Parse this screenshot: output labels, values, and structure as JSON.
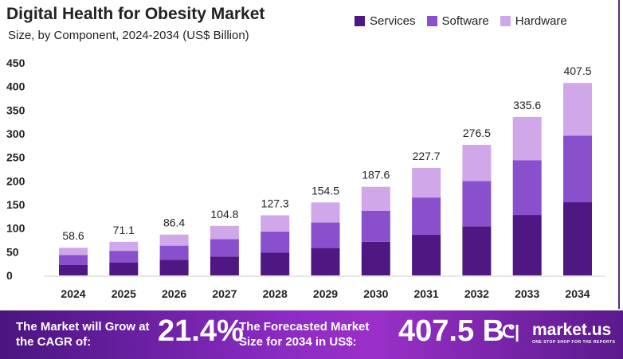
{
  "chart_data": {
    "type": "bar",
    "stacked": true,
    "title": "Digital Health for Obesity Market",
    "subtitle": "Size, by Component, 2024-2034 (US$ Billion)",
    "categories": [
      "2024",
      "2025",
      "2026",
      "2027",
      "2028",
      "2029",
      "2030",
      "2031",
      "2032",
      "2033",
      "2034"
    ],
    "totals": [
      "58.6",
      "71.1",
      "86.4",
      "104.8",
      "127.3",
      "154.5",
      "187.6",
      "227.7",
      "276.5",
      "335.6",
      "407.5"
    ],
    "series": [
      {
        "name": "Services",
        "color": "#4e1782",
        "values": [
          22,
          27,
          33,
          40,
          48,
          58,
          71,
          86,
          104,
          128,
          155
        ]
      },
      {
        "name": "Software",
        "color": "#8a4fcc",
        "values": [
          21,
          25,
          30,
          37,
          45,
          54,
          66,
          79,
          96,
          116,
          141
        ]
      },
      {
        "name": "Hardware",
        "color": "#d0a8ea",
        "values": [
          15.6,
          19.1,
          23.4,
          27.8,
          34.3,
          42.5,
          50.6,
          62.7,
          76.5,
          91.6,
          111.5
        ]
      }
    ],
    "ylim": [
      0,
      450
    ],
    "yticks": [
      "0",
      "50",
      "100",
      "150",
      "200",
      "250",
      "300",
      "350",
      "400",
      "450"
    ],
    "legend": "top-right",
    "grid": false
  },
  "footer": {
    "cagr_text": "The Market will Grow at the CAGR of:",
    "cagr_value": "21.4%",
    "forecast_text": "The Forecasted Market Size for 2034 in US$:",
    "forecast_value": "407.5 B",
    "brand": "market.us",
    "tagline": "ONE STOP SHOP FOR THE REPORTS"
  }
}
